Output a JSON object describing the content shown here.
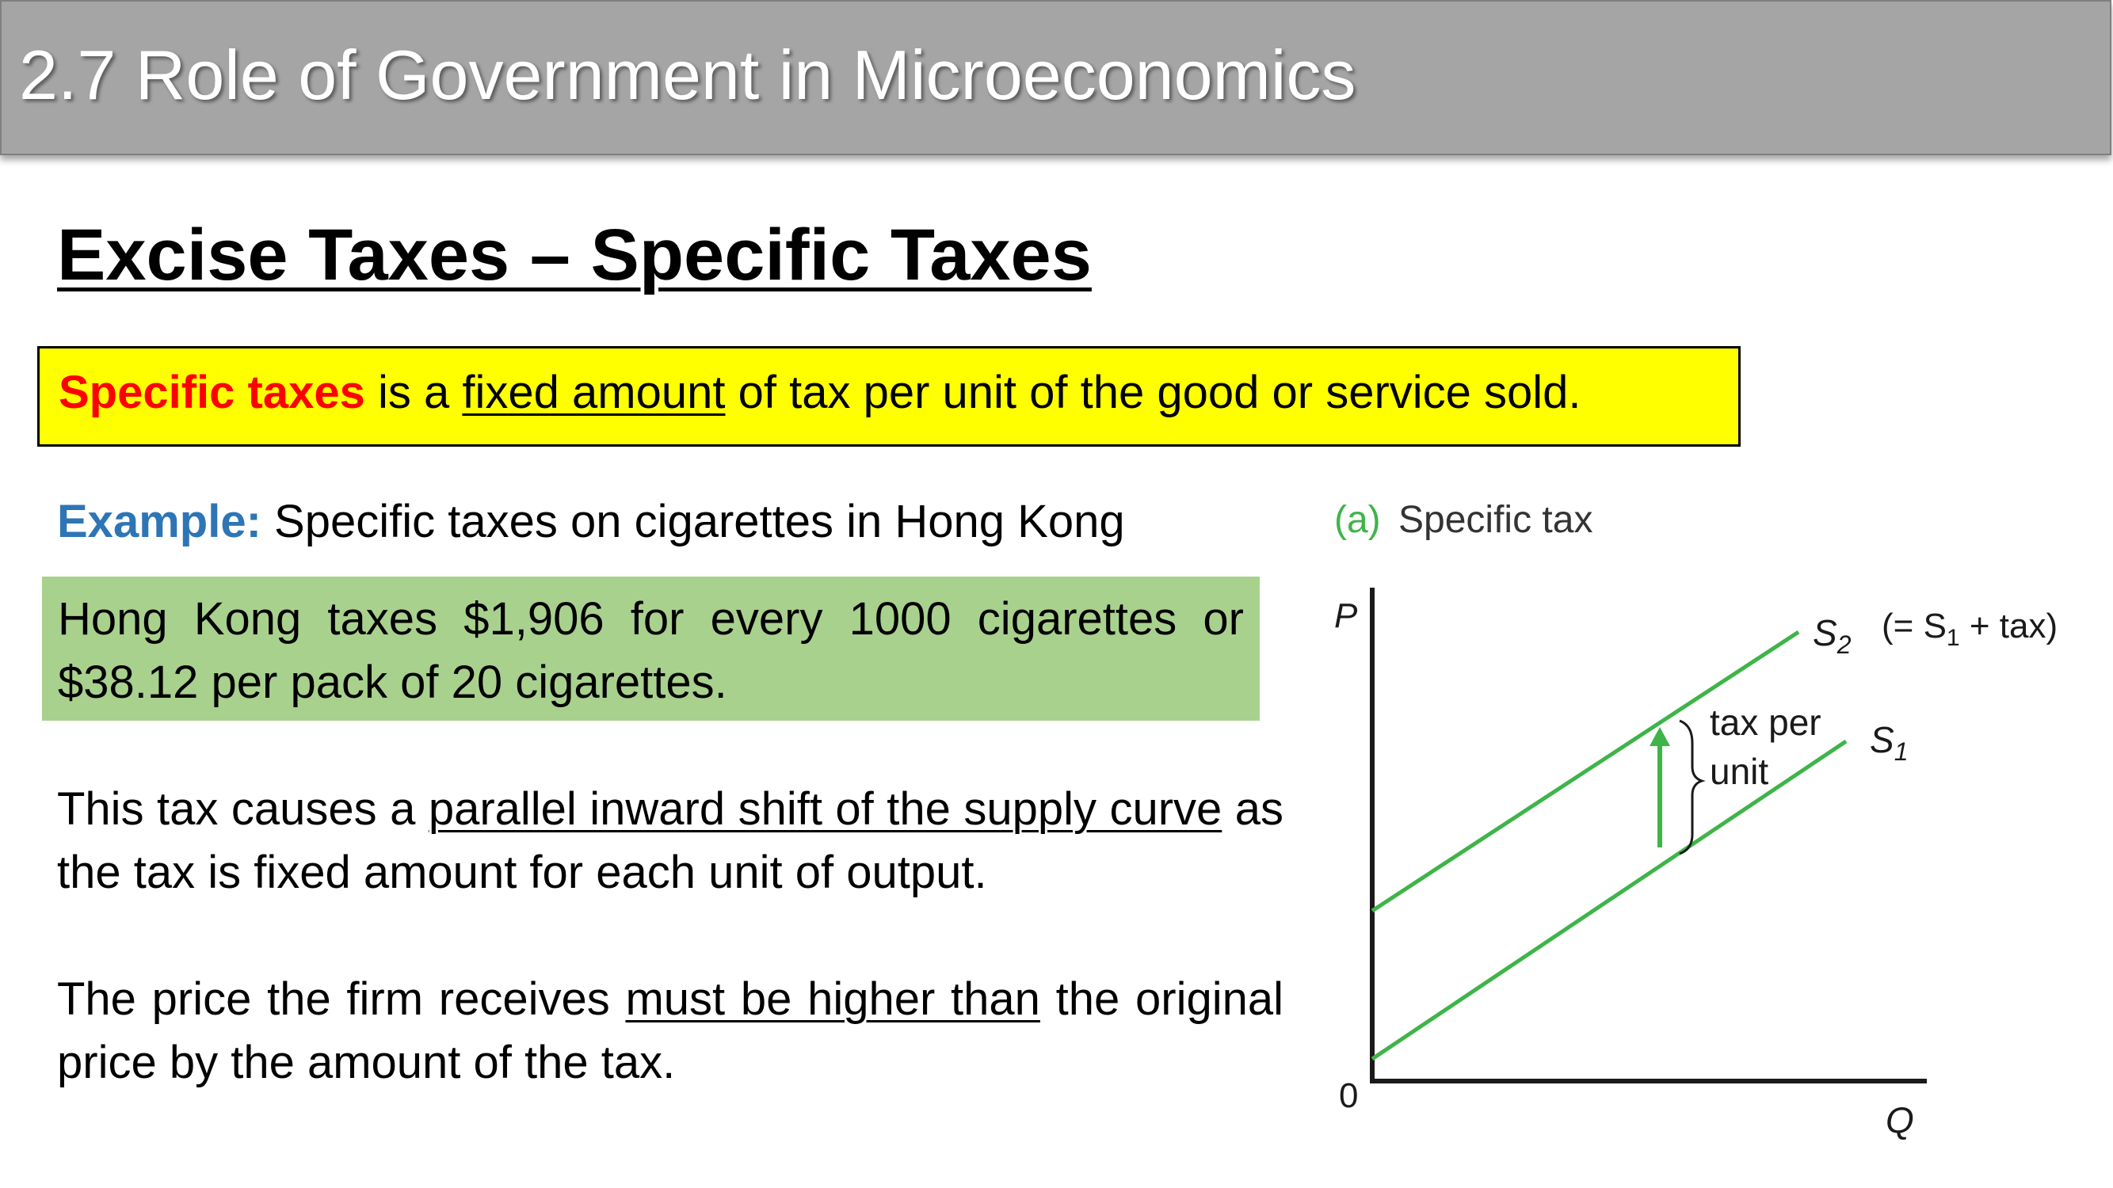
{
  "header": {
    "title": "2.7 Role of Government in Microeconomics"
  },
  "heading": "Excise Taxes – Specific Taxes",
  "definition": {
    "term": "Specific taxes",
    "text_1": " is a ",
    "underlined": "fixed amount",
    "text_2": " of tax per unit of the good or service sold."
  },
  "example": {
    "label": "Example:",
    "text": " Specific taxes on cigarettes in Hong Kong"
  },
  "highlight_box": {
    "text": "Hong Kong taxes $1,906 for every 1000 cigarettes or $38.12 per pack of 20 cigarettes."
  },
  "paragraph_1": {
    "text_1": "This tax causes a ",
    "underlined": "parallel inward shift of the supply curve",
    "text_2": " as the tax is fixed amount for each unit of output."
  },
  "paragraph_2": {
    "text_1": "The price the firm receives ",
    "underlined": "must be higher than",
    "text_2": " the original price by the amount of the tax."
  },
  "diagram": {
    "panel_letter": "(a)",
    "panel_title": "Specific tax",
    "y_axis_label": "P",
    "x_axis_label": "Q",
    "origin_label": "0",
    "s2_label": "S",
    "s2_sub": "2",
    "s2_note_open": "(= S",
    "s2_note_sub": "1",
    "s2_note_close": " + tax)",
    "s1_label": "S",
    "s1_sub": "1",
    "tax_label_line1": "tax per",
    "tax_label_line2": "unit",
    "colors": {
      "curve": "#3fb449",
      "arrow": "#3fb449",
      "panel_letter": "#3fb449",
      "axis": "#1a1a1a"
    }
  }
}
